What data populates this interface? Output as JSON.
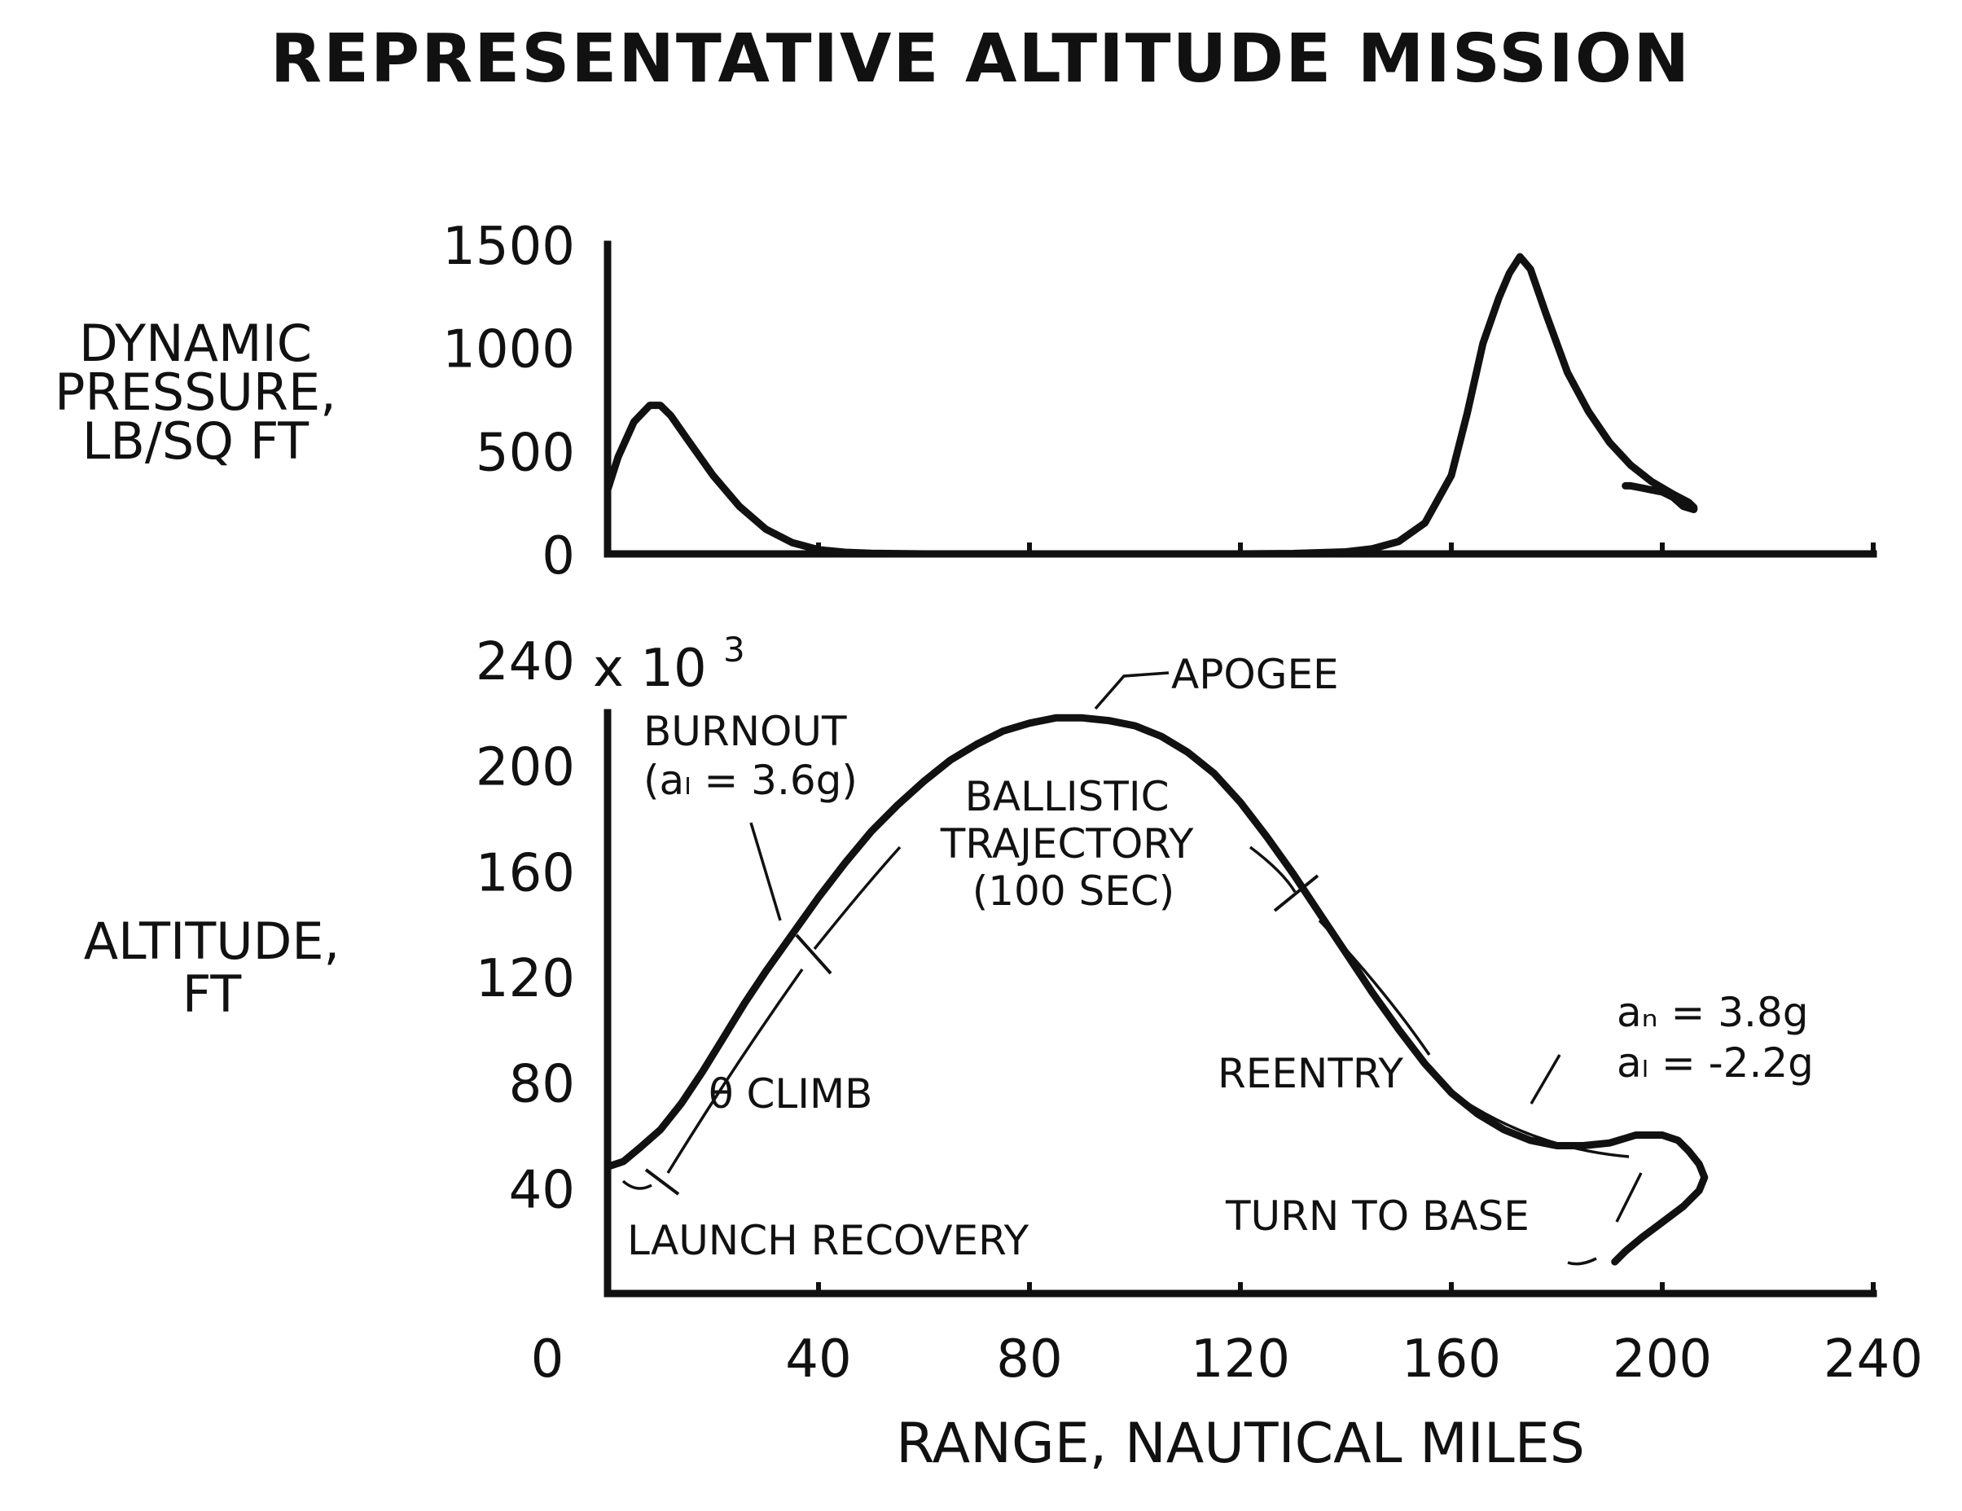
{
  "title": "REPRESENTATIVE ALTITUDE MISSION",
  "chart_data": [
    {
      "type": "line",
      "ylabel": [
        "DYNAMIC",
        "PRESSURE,",
        "LB/SQ FT"
      ],
      "xlabel": "",
      "xlim": [
        0,
        240
      ],
      "ylim": [
        0,
        1500
      ],
      "yticks": [
        "0",
        "500",
        "1000",
        "1500"
      ],
      "x_axis_labeled": false,
      "grid": false,
      "series": [
        {
          "x": [
            0,
            2,
            5,
            8,
            10,
            12,
            15,
            20,
            25,
            30,
            35,
            40,
            45,
            50,
            60,
            80,
            100,
            120,
            130,
            140,
            145,
            150,
            155,
            160,
            163,
            166,
            169,
            171,
            173,
            175,
            178,
            182,
            186,
            190,
            194,
            198,
            202,
            205,
            206,
            206,
            204,
            202,
            200,
            198,
            196,
            194,
            193
          ],
          "y": [
            310,
            470,
            640,
            720,
            720,
            670,
            560,
            380,
            230,
            120,
            55,
            20,
            8,
            3,
            0,
            0,
            0,
            0,
            2,
            10,
            25,
            60,
            150,
            380,
            680,
            1020,
            1240,
            1360,
            1440,
            1380,
            1160,
            880,
            690,
            540,
            430,
            350,
            290,
            250,
            225,
            215,
            230,
            275,
            300,
            310,
            320,
            330,
            330
          ]
        }
      ]
    },
    {
      "type": "line",
      "ylabel": [
        "ALTITUDE,",
        "FT"
      ],
      "xlabel": "RANGE, NAUTICAL MILES",
      "xlim": [
        0,
        240
      ],
      "ylim": [
        0,
        240
      ],
      "y_multiplier": "x 10",
      "y_multiplier_exp": "3",
      "yticks": [
        "40",
        "80",
        "120",
        "160",
        "200",
        "240"
      ],
      "xticks": [
        "0",
        "40",
        "80",
        "120",
        "160",
        "200",
        "240"
      ],
      "grid": false,
      "series": [
        {
          "x": [
            0,
            3,
            6,
            10,
            14,
            18,
            22,
            26,
            30,
            35,
            40,
            45,
            50,
            55,
            60,
            65,
            70,
            75,
            80,
            85,
            90,
            95,
            100,
            105,
            110,
            115,
            120,
            125,
            130,
            135,
            140,
            145,
            150,
            155,
            160,
            165,
            170,
            175,
            180,
            185,
            190,
            195,
            200,
            203,
            205,
            207,
            208,
            207,
            204,
            200,
            196,
            193,
            191
          ],
          "y": [
            48,
            50,
            55,
            62,
            72,
            84,
            97,
            110,
            122,
            136,
            150,
            163,
            175,
            185,
            194,
            202,
            208,
            213,
            216,
            218,
            218,
            217,
            215,
            211,
            205,
            197,
            186,
            173,
            159,
            144,
            129,
            114,
            100,
            87,
            76,
            68,
            62,
            58,
            56,
            56,
            57,
            60,
            60,
            58,
            54,
            49,
            44,
            39,
            33,
            27,
            21,
            16,
            12
          ]
        }
      ],
      "annotations": [
        {
          "lines": [
            "APOGEE"
          ]
        },
        {
          "lines": [
            "BURNOUT",
            "(aₗ = 3.6g)"
          ]
        },
        {
          "lines": [
            "BALLISTIC",
            "TRAJECTORY",
            "(100 SEC)"
          ]
        },
        {
          "lines": [
            "θ CLIMB"
          ]
        },
        {
          "lines": [
            "REENTRY"
          ]
        },
        {
          "lines": [
            "aₙ = 3.8g",
            "aₗ = -2.2g"
          ]
        },
        {
          "lines": [
            "TURN TO BASE"
          ]
        },
        {
          "lines": [
            "LAUNCH RECOVERY"
          ]
        }
      ]
    }
  ]
}
